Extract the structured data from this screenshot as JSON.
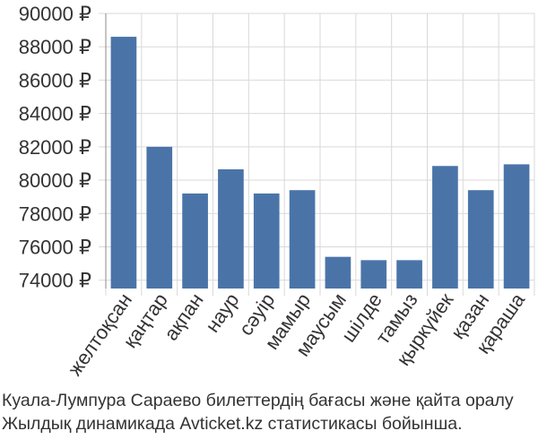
{
  "chart_data": {
    "type": "bar",
    "categories": [
      "желтоқсан",
      "қаңтар",
      "ақпан",
      "наур",
      "сәуір",
      "мамыр",
      "маусым",
      "шілде",
      "тамыз",
      "қыркүйек",
      "қазан",
      "қараша"
    ],
    "values": [
      88600,
      82000,
      79200,
      80650,
      79200,
      79400,
      75400,
      75200,
      75200,
      80850,
      79400,
      80950
    ],
    "ylim": [
      73500,
      90000
    ],
    "yticks": [
      74000,
      76000,
      78000,
      80000,
      82000,
      84000,
      86000,
      88000,
      90000
    ],
    "ytick_labels": [
      "74000 ₽",
      "76000 ₽",
      "78000 ₽",
      "80000 ₽",
      "82000 ₽",
      "84000 ₽",
      "86000 ₽",
      "88000 ₽",
      "90000 ₽"
    ],
    "grid": true,
    "colors": {
      "bar": "#4a74a8",
      "grid": "#d9d9d9",
      "axis": "#888888"
    }
  },
  "caption": {
    "line1": "Куала-Лумпура Сараево билеттердің бағасы және қайта оралу",
    "line2": "Жылдық динамикада Avticket.kz статистикасы бойынша."
  }
}
